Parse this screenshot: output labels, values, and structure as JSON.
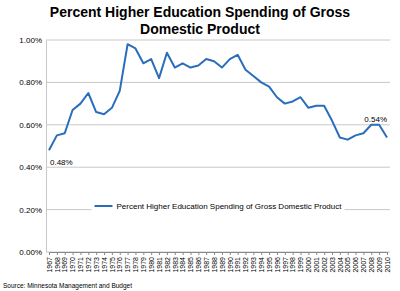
{
  "chart_data": {
    "type": "line",
    "title": "Percent Higher Education Spending of Gross Domestic Product",
    "categories": [
      "1967",
      "1968",
      "1969",
      "1970",
      "1971",
      "1972",
      "1973",
      "1974",
      "1975",
      "1976",
      "1977",
      "1978",
      "1979",
      "1980",
      "1981",
      "1982",
      "1983",
      "1984",
      "1985",
      "1986",
      "1987",
      "1988",
      "1989",
      "1990",
      "1991",
      "1992",
      "1993",
      "1994",
      "1995",
      "1996",
      "1997",
      "1998",
      "1999",
      "2000",
      "2001",
      "2002",
      "2003",
      "2004",
      "2005",
      "2006",
      "2007",
      "2008",
      "2009",
      "2010"
    ],
    "series": [
      {
        "name": "Percent Higher Education Spending of Gross Domestic Product",
        "color": "#2a6ebb",
        "values": [
          0.48,
          0.55,
          0.56,
          0.67,
          0.7,
          0.75,
          0.66,
          0.65,
          0.68,
          0.76,
          0.98,
          0.96,
          0.89,
          0.91,
          0.82,
          0.94,
          0.87,
          0.89,
          0.87,
          0.88,
          0.91,
          0.9,
          0.87,
          0.91,
          0.93,
          0.86,
          0.83,
          0.8,
          0.78,
          0.73,
          0.7,
          0.71,
          0.73,
          0.68,
          0.69,
          0.69,
          0.62,
          0.54,
          0.53,
          0.55,
          0.56,
          0.6,
          0.6,
          0.54
        ]
      }
    ],
    "ylim": [
      0,
      1
    ],
    "yticks": [
      {
        "value": 0,
        "label": "0.00%"
      },
      {
        "value": 0.2,
        "label": "0.20%"
      },
      {
        "value": 0.4,
        "label": "0.40%"
      },
      {
        "value": 0.6,
        "label": "0.60%"
      },
      {
        "value": 0.8,
        "label": "0.80%"
      },
      {
        "value": 1,
        "label": "1.00%"
      }
    ],
    "grid": true,
    "legend": "bottom",
    "annotations": [
      {
        "category": "1967",
        "value": 0.48,
        "label": "0.48%"
      },
      {
        "category": "2010",
        "value": 0.54,
        "label": "0.54%"
      }
    ],
    "source": "Source: Minnesota Management and Budget"
  }
}
